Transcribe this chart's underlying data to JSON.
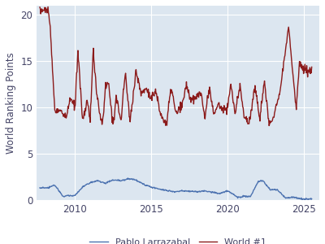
{
  "title": "",
  "ylabel": "World Ranking Points",
  "xlabel": "",
  "bg_color": "#dce6f0",
  "fig_bg_color": "#ffffff",
  "larrazabal_color": "#4c72b0",
  "world1_color": "#8b1a1a",
  "larrazabal_label": "Pablo Larrazabal",
  "world1_label": "World #1",
  "ylim": [
    0,
    21
  ],
  "xlim_start": 2007.5,
  "xlim_end": 2026.0,
  "yticks": [
    0,
    5,
    10,
    15,
    20
  ],
  "xticks": [
    2010,
    2015,
    2020,
    2025
  ],
  "linewidth": 1.0,
  "legend_ncol": 2,
  "grid_color": "#ffffff",
  "grid_alpha": 1.0,
  "grid_linewidth": 0.8
}
